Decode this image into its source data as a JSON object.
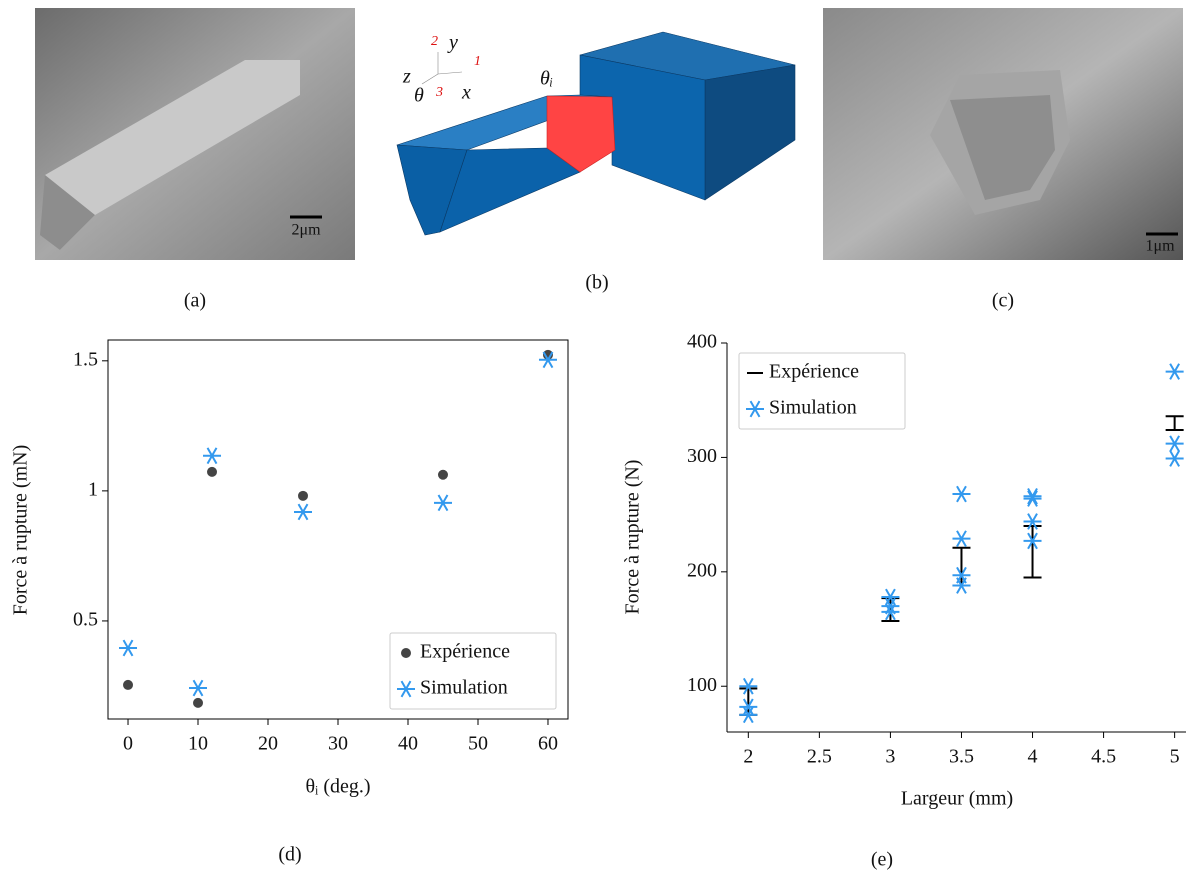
{
  "panels": {
    "a": {
      "label": "(a)",
      "scale": "2μm"
    },
    "b": {
      "label": "(b)",
      "angle": "θᵢ",
      "axis_y": "y",
      "axis_x": "x",
      "axis_z": "z",
      "axis_theta": "θ",
      "dir_1": "1",
      "dir_2": "2",
      "dir_3": "3"
    },
    "c": {
      "label": "(c)",
      "scale": "1μm"
    }
  },
  "chart_data": [
    {
      "type": "scatter",
      "caption": "(d)",
      "xlabel": "θᵢ (deg.)",
      "ylabel": "Force à rupture (mN)",
      "xlim": [
        -2.86,
        62.86
      ],
      "ylim": [
        0.123,
        1.58
      ],
      "xticks": [
        0,
        10,
        20,
        30,
        40,
        50,
        60
      ],
      "yticks": [
        0.5,
        1,
        1.5
      ],
      "frame": true,
      "legend": "lower right",
      "series": [
        {
          "name": "Expérience",
          "color": "#444444",
          "marker": "dot",
          "x": [
            0,
            10,
            12,
            25,
            45,
            60
          ],
          "values": [
            0.254,
            0.185,
            1.073,
            0.981,
            1.062,
            1.523
          ]
        },
        {
          "name": "Simulation",
          "color": "#3399ee",
          "marker": "asterisk",
          "x": [
            0,
            10,
            12,
            25,
            45,
            60
          ],
          "values": [
            0.396,
            0.242,
            1.135,
            0.919,
            0.954,
            1.504
          ]
        }
      ]
    },
    {
      "type": "scatter",
      "caption": "(e)",
      "xlabel": "Largeur (mm)",
      "ylabel": "Force à rupture (N)",
      "xlim": [
        1.85,
        5.08
      ],
      "ylim": [
        60,
        400
      ],
      "xticks": [
        2,
        2.5,
        3,
        3.5,
        4,
        4.5,
        5
      ],
      "yticks": [
        100,
        200,
        300,
        400
      ],
      "frame": false,
      "legend": "upper left",
      "series": [
        {
          "name": "Expérience",
          "color": "#000000",
          "marker": "errorbar",
          "x": [
            2,
            3,
            3.5,
            4,
            5
          ],
          "low": [
            75,
            157,
            188,
            195,
            324
          ],
          "high": [
            98,
            177,
            221,
            240,
            336
          ]
        },
        {
          "name": "Simulation",
          "color": "#3399ee",
          "marker": "asterisk",
          "x": [
            2,
            2,
            2,
            3,
            3,
            3,
            3.5,
            3.5,
            3.5,
            3.5,
            4,
            4,
            4,
            4,
            5,
            5,
            5
          ],
          "values": [
            100,
            82,
            75,
            178,
            170,
            165,
            268,
            229,
            197,
            188,
            266,
            264,
            244,
            227,
            375,
            312,
            299
          ]
        }
      ]
    }
  ]
}
